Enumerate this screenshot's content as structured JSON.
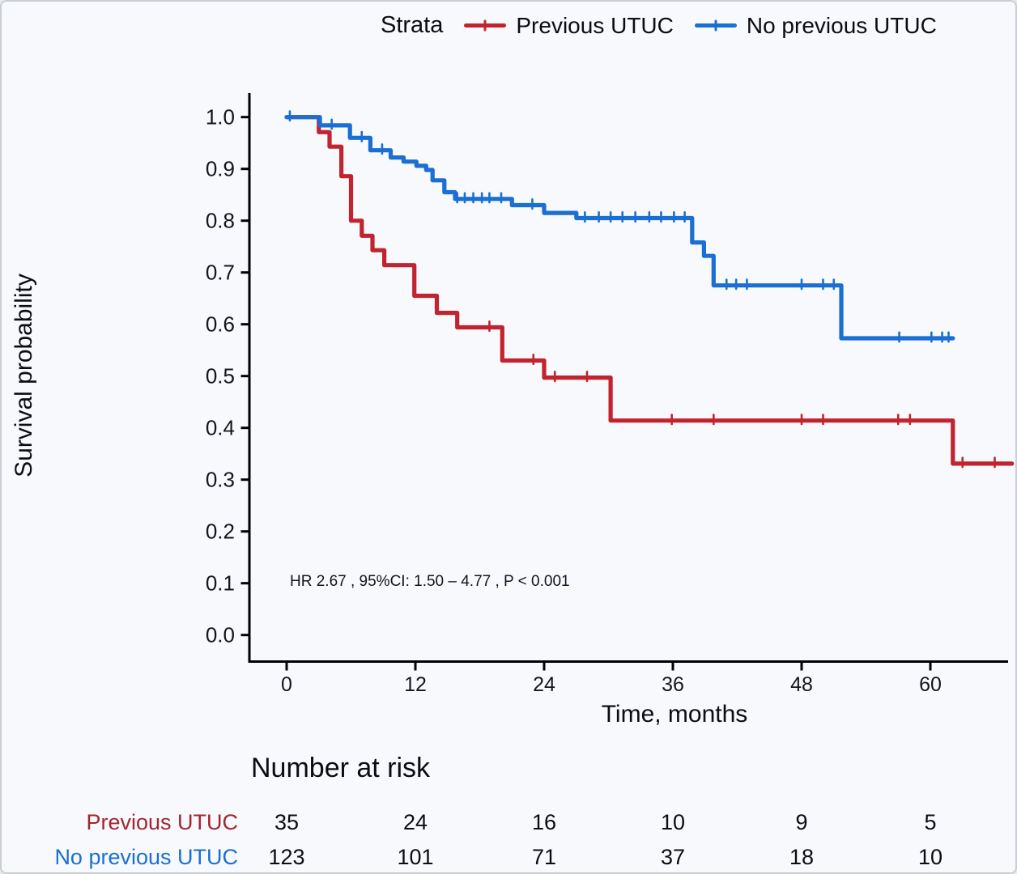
{
  "figure": {
    "background": "#f7f9fc",
    "border_color": "#c9cdd4",
    "text_color": "#15151f"
  },
  "legend": {
    "title": "Strata",
    "items": [
      {
        "label": "Previous UTUC",
        "color": "#c1242e"
      },
      {
        "label": "No previous UTUC",
        "color": "#1b6fd3"
      }
    ]
  },
  "chart_data": {
    "type": "line",
    "variant": "kaplan-meier-survival-step",
    "title": "",
    "xlabel": "Time, months",
    "ylabel": "Survival probability",
    "xlim": [
      0,
      68.5
    ],
    "ylim": [
      0,
      1.0
    ],
    "xticks": [
      0,
      12,
      24,
      36,
      48,
      60
    ],
    "yticks": [
      0,
      0.1,
      0.2,
      0.3,
      0.4,
      0.5,
      0.6,
      0.7,
      0.8,
      0.9,
      1.0
    ],
    "grid": false,
    "legend_position": "top",
    "annotation": "HR  2.67 , 95%CI:  1.50 – 4.77 ,  P < 0.001",
    "series": [
      {
        "name": "Previous UTUC",
        "color": "#c1242e",
        "step_points": [
          [
            0,
            1.0
          ],
          [
            3.0,
            0.971
          ],
          [
            4.0,
            0.943
          ],
          [
            5.1,
            0.886
          ],
          [
            6.0,
            0.8
          ],
          [
            7.0,
            0.771
          ],
          [
            8.0,
            0.743
          ],
          [
            9.1,
            0.714
          ],
          [
            11.9,
            0.655
          ],
          [
            14.0,
            0.622
          ],
          [
            15.9,
            0.594
          ],
          [
            20.1,
            0.53
          ],
          [
            24.0,
            0.497
          ],
          [
            30.2,
            0.414
          ],
          [
            62.1,
            0.331
          ],
          [
            67.6,
            0.331
          ]
        ],
        "censor_marks": [
          [
            18.9,
            0.594
          ],
          [
            23.0,
            0.53
          ],
          [
            25.0,
            0.497
          ],
          [
            28.0,
            0.497
          ],
          [
            35.9,
            0.414
          ],
          [
            39.8,
            0.414
          ],
          [
            48.0,
            0.414
          ],
          [
            50.0,
            0.414
          ],
          [
            57.0,
            0.414
          ],
          [
            58.1,
            0.414
          ],
          [
            63.0,
            0.331
          ],
          [
            66.0,
            0.331
          ]
        ]
      },
      {
        "name": "No previous UTUC",
        "color": "#1b6fd3",
        "step_points": [
          [
            0,
            1.0
          ],
          [
            3.1,
            0.984
          ],
          [
            5.9,
            0.96
          ],
          [
            7.8,
            0.936
          ],
          [
            9.7,
            0.922
          ],
          [
            10.9,
            0.914
          ],
          [
            12.1,
            0.906
          ],
          [
            13.0,
            0.898
          ],
          [
            13.6,
            0.878
          ],
          [
            14.7,
            0.855
          ],
          [
            15.7,
            0.842
          ],
          [
            21.0,
            0.83
          ],
          [
            24.0,
            0.815
          ],
          [
            27.0,
            0.805
          ],
          [
            37.8,
            0.758
          ],
          [
            38.9,
            0.732
          ],
          [
            39.8,
            0.675
          ],
          [
            51.7,
            0.573
          ],
          [
            62.1,
            0.573
          ]
        ],
        "censor_marks": [
          [
            0.3,
            1.0
          ],
          [
            4.2,
            0.984
          ],
          [
            7.0,
            0.96
          ],
          [
            8.9,
            0.936
          ],
          [
            15.9,
            0.842
          ],
          [
            16.6,
            0.842
          ],
          [
            17.4,
            0.842
          ],
          [
            18.2,
            0.842
          ],
          [
            18.9,
            0.842
          ],
          [
            20.0,
            0.842
          ],
          [
            22.9,
            0.83
          ],
          [
            27.8,
            0.805
          ],
          [
            29.1,
            0.805
          ],
          [
            30.2,
            0.805
          ],
          [
            31.3,
            0.805
          ],
          [
            32.5,
            0.805
          ],
          [
            33.8,
            0.805
          ],
          [
            34.9,
            0.805
          ],
          [
            36.1,
            0.805
          ],
          [
            37.1,
            0.805
          ],
          [
            41.0,
            0.675
          ],
          [
            41.9,
            0.675
          ],
          [
            42.9,
            0.675
          ],
          [
            48.0,
            0.675
          ],
          [
            50.0,
            0.675
          ],
          [
            51.0,
            0.675
          ],
          [
            57.1,
            0.573
          ],
          [
            60.1,
            0.573
          ],
          [
            61.1,
            0.573
          ],
          [
            61.7,
            0.573
          ]
        ]
      }
    ]
  },
  "risk_table": {
    "title": "Number at risk",
    "time_points": [
      0,
      12,
      24,
      36,
      48,
      60
    ],
    "rows": [
      {
        "label": "Previous UTUC",
        "color": "#a2262f",
        "values": [
          35,
          24,
          16,
          10,
          9,
          5
        ]
      },
      {
        "label": "No previous UTUC",
        "color": "#1b6fd3",
        "values": [
          123,
          101,
          71,
          37,
          18,
          10
        ]
      }
    ]
  }
}
